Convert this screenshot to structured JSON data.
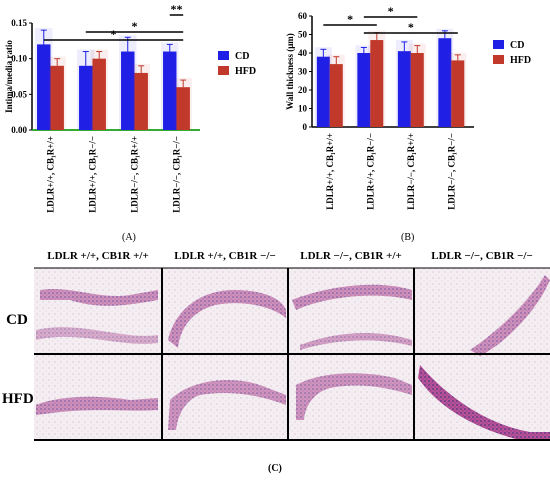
{
  "chart_data": [
    {
      "type": "bar",
      "id": "A",
      "panel_label": "(A)",
      "ylabel": "Intima/media ratio",
      "ylim": [
        0,
        0.15
      ],
      "yticks": [
        "0.00",
        "0.05",
        "0.10",
        "0.15"
      ],
      "categories": [
        "LDLR+/+, CB₁R+/+",
        "LDLR+/+, CB₁R−/−",
        "LDLR−/−, CB₁R+/+",
        "LDLR−/−, CB₁R−/−"
      ],
      "series": [
        {
          "name": "CD",
          "color": "#1f1fe6",
          "values": [
            0.12,
            0.09,
            0.11,
            0.11
          ],
          "errors": [
            0.02,
            0.02,
            0.02,
            0.01
          ]
        },
        {
          "name": "HFD",
          "color": "#c0392b",
          "values": [
            0.09,
            0.1,
            0.08,
            0.06
          ],
          "errors": [
            0.01,
            0.01,
            0.01,
            0.01
          ]
        }
      ],
      "legend": "right",
      "significance": [
        {
          "from": 0,
          "to": 3,
          "label": "*"
        },
        {
          "from": 1,
          "to": 3,
          "label": "*"
        },
        {
          "from": 3,
          "to": 3,
          "label": "**"
        }
      ]
    },
    {
      "type": "bar",
      "id": "B",
      "panel_label": "(B)",
      "ylabel": "Wall thickness (μm)",
      "ylim": [
        0,
        60
      ],
      "yticks": [
        "0",
        "10",
        "20",
        "30",
        "40",
        "50",
        "60"
      ],
      "categories": [
        "LDLR+/+, CB₁R+/+",
        "LDLR+/+, CB₁R−/−",
        "LDLR−/−, CB₁R+/+",
        "LDLR−/−, CB₁R−/−"
      ],
      "series": [
        {
          "name": "CD",
          "color": "#1f1fe6",
          "values": [
            38,
            40,
            41,
            48
          ],
          "errors": [
            4,
            3,
            5,
            4
          ]
        },
        {
          "name": "HFD",
          "color": "#c0392b",
          "values": [
            34,
            47,
            40,
            36
          ],
          "errors": [
            4,
            4,
            4,
            3
          ]
        }
      ],
      "legend": "right",
      "significance": [
        {
          "from": 0,
          "to": 1,
          "label": "*"
        },
        {
          "from": 1,
          "to": 2,
          "label": "*"
        },
        {
          "from": 1,
          "to": 3,
          "label": "*"
        }
      ]
    }
  ],
  "histology": {
    "panel_label": "(C)",
    "columns": [
      "LDLR +/+, CB1R +/+",
      "LDLR +/+, CB1R −/−",
      "LDLR −/−, CB1R +/+",
      "LDLR −/−, CB1R −/−"
    ],
    "rows": [
      "CD",
      "HFD"
    ]
  }
}
